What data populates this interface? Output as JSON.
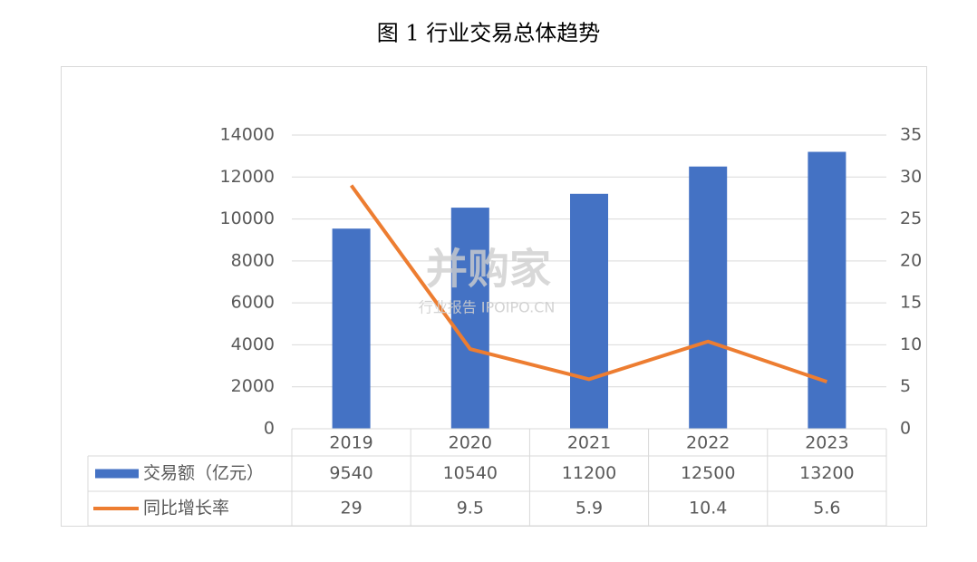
{
  "chart_data": {
    "type": "bar",
    "title": "图 1 行业交易总体趋势",
    "categories": [
      "2019",
      "2020",
      "2021",
      "2022",
      "2023"
    ],
    "series": [
      {
        "name": "交易额（亿元）",
        "type": "bar",
        "color": "#4472c4",
        "values": [
          9540,
          10540,
          11200,
          12500,
          13200
        ]
      },
      {
        "name": "同比增长率",
        "type": "line",
        "axis": "y2",
        "color": "#ed7d31",
        "values": [
          29,
          9.5,
          5.9,
          10.4,
          5.6
        ]
      }
    ],
    "ylim": [
      0,
      14000
    ],
    "yticks": [
      0,
      2000,
      4000,
      6000,
      8000,
      10000,
      12000,
      14000
    ],
    "y2lim": [
      0,
      35
    ],
    "y2ticks": [
      0,
      5,
      10,
      15,
      20,
      25,
      30,
      35
    ],
    "grid": true,
    "data_table": true,
    "watermark": [
      "并购家",
      "行业报告 IPOIPO.CN"
    ]
  }
}
